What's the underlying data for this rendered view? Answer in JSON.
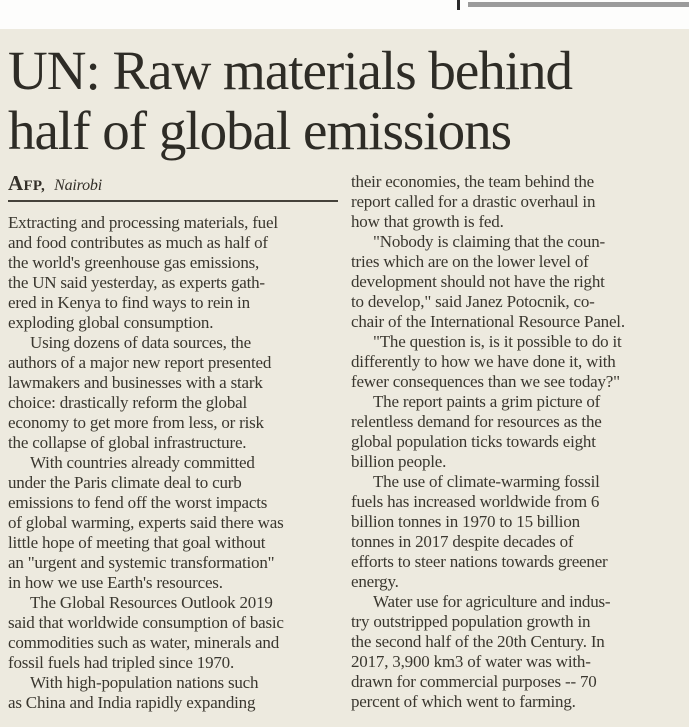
{
  "colors": {
    "page_background": "#fdfdfc",
    "article_background": "#edeadf",
    "headline_text": "#2e2c26",
    "body_text": "#3a372f",
    "top_rule_gray": "#9b9b9b",
    "byline_rule": "#45423a"
  },
  "article": {
    "headline": "UN: Raw materials behind\nhalf of global emissions",
    "byline": {
      "agency": "AFP,",
      "location": "Nairobi"
    },
    "columns": {
      "left": [
        "Extracting and processing materials, fuel\nand food contributes as much as half of\nthe world's greenhouse gas emissions,\nthe UN said yesterday, as experts gath-\nered in Kenya to find ways to rein in\nexploding global consumption.",
        "Using dozens of data sources, the\nauthors of a major new report presented\nlawmakers and businesses with a stark\nchoice: drastically reform the global\neconomy to get more from less, or risk\nthe collapse of global infrastructure.",
        "With countries already committed\nunder the Paris climate deal to curb\nemissions to fend off the worst impacts\nof global warming, experts said there was\nlittle hope of meeting that goal without\nan \"urgent and systemic transformation\"\nin how we use Earth's resources.",
        "The Global Resources Outlook 2019\nsaid that worldwide consumption of basic\ncommodities such as water, minerals and\nfossil fuels had tripled since 1970.",
        "With high-population nations such\nas China and India rapidly expanding"
      ],
      "right": [
        "their economies, the team behind the\nreport called for a drastic overhaul in\nhow that growth is fed.",
        "\"Nobody is claiming that the coun-\ntries which are on the lower level of\ndevelopment should not have the right\nto develop,\" said Janez Potocnik, co-\nchair of the International Resource Panel.",
        "\"The question is, is it possible to do it\ndifferently to how we have done it, with\nfewer consequences than we see today?\"",
        "The report paints a grim picture of\nrelentless demand for resources as the\nglobal population ticks towards eight\nbillion people.",
        "The use of climate-warming fossil\nfuels has increased worldwide from 6\nbillion tonnes in 1970 to 15 billion\ntonnes in 2017 despite decades of\nefforts to steer nations towards greener\nenergy.",
        "Water use for agriculture and indus-\ntry outstripped population growth in\nthe second half of the 20th Century. In\n2017, 3,900 km3 of water was with-\ndrawn for commercial purposes -- 70\npercent of which went to farming."
      ]
    }
  }
}
